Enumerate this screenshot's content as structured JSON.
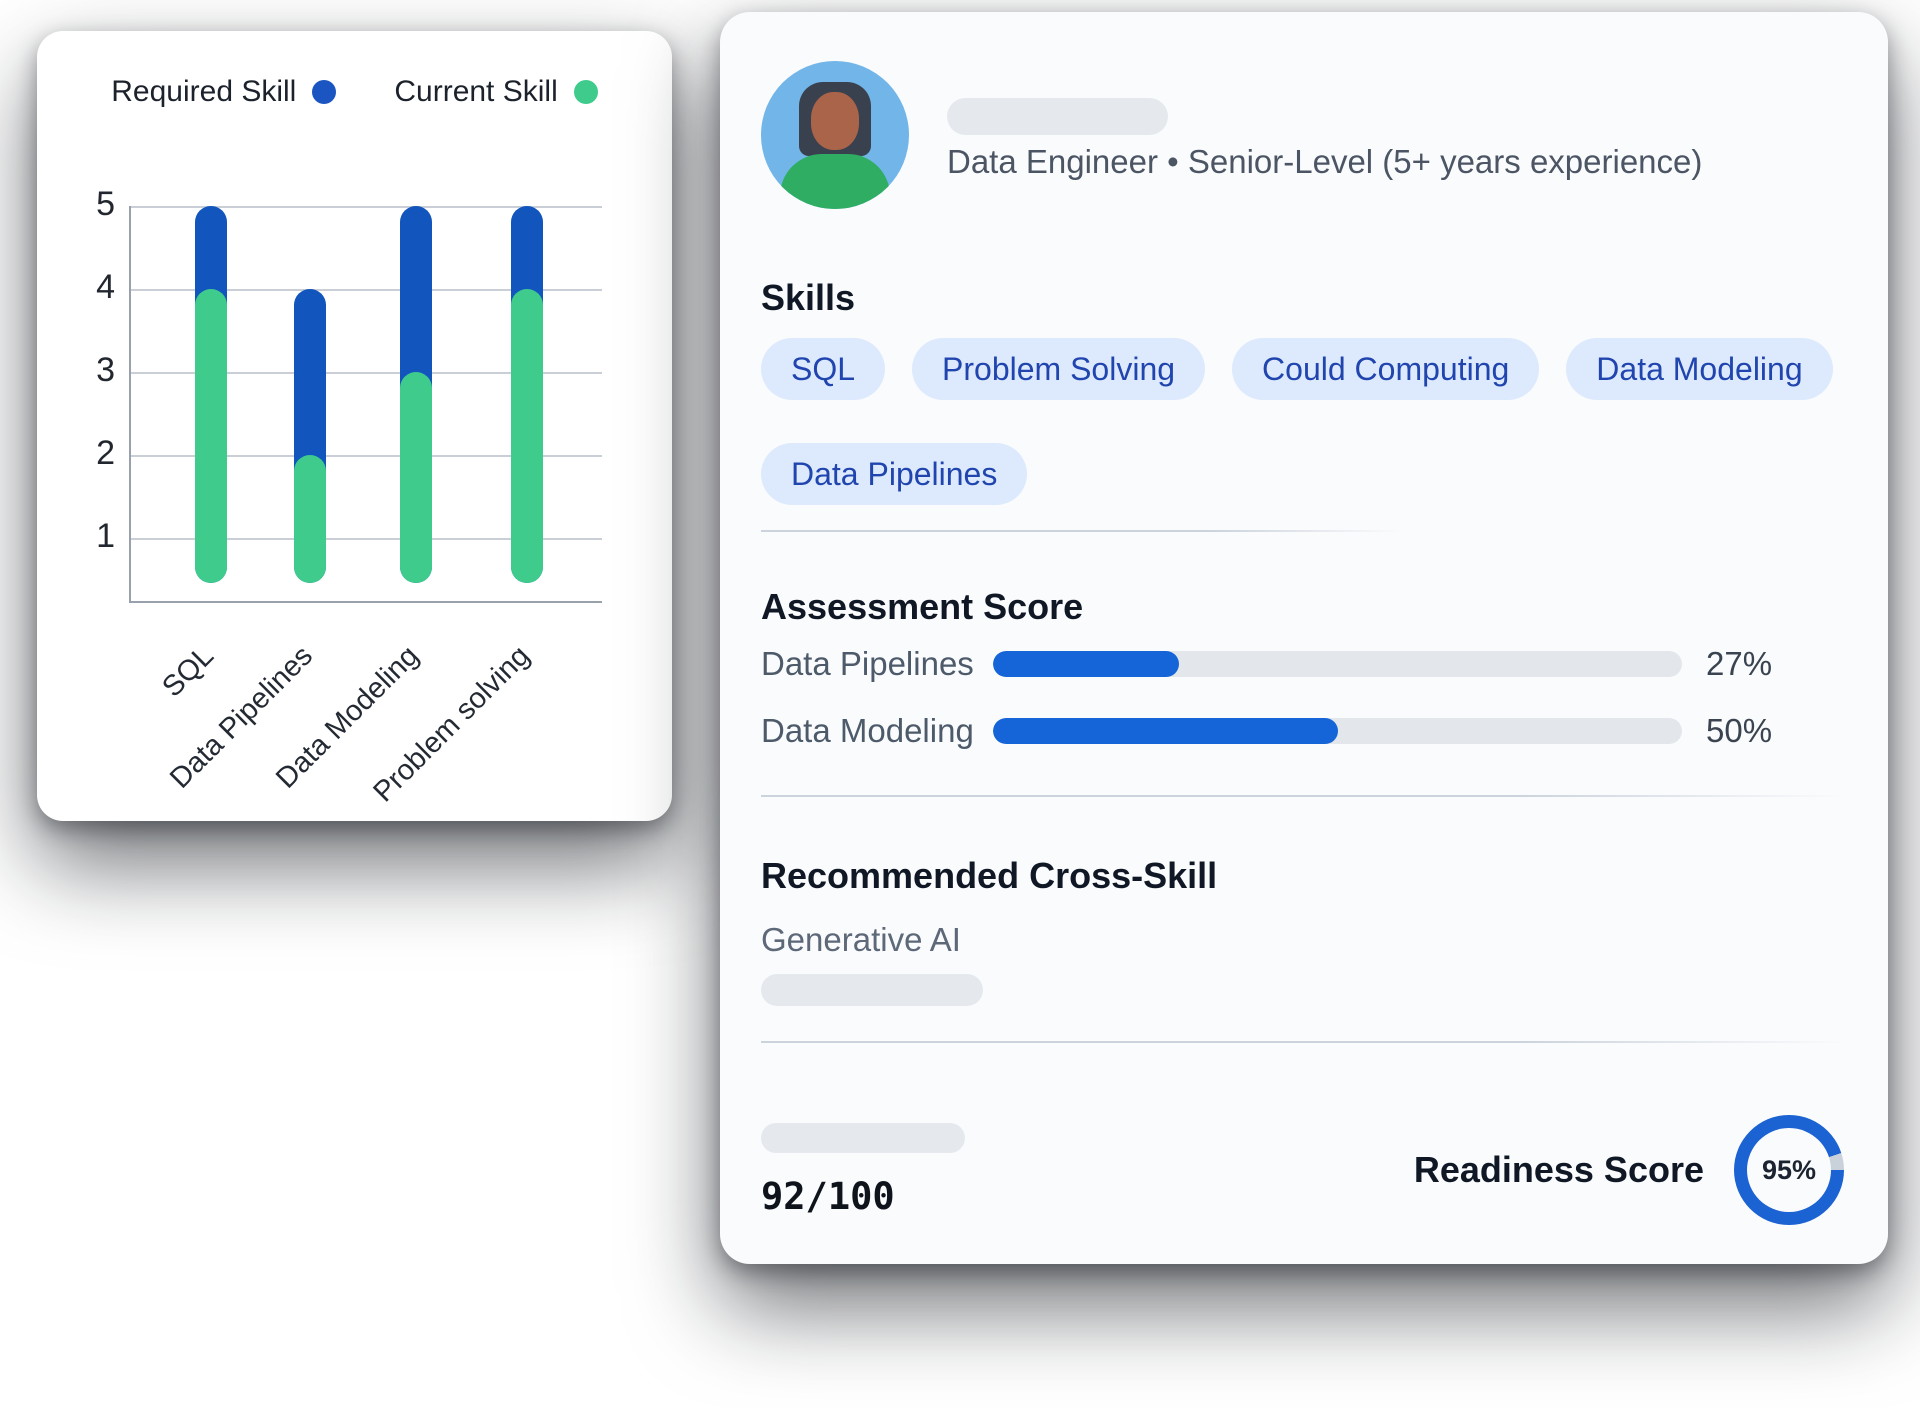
{
  "left_card": {
    "legend": [
      {
        "label": "Required Skill",
        "color": "#1a55c2"
      },
      {
        "label": "Current Skill",
        "color": "#3ecb8c"
      }
    ]
  },
  "chart_data": {
    "type": "bar",
    "title": "",
    "categories": [
      "SQL",
      "Data Pipelines",
      "Data Modeling",
      "Problem solving"
    ],
    "series": [
      {
        "name": "Required Skill",
        "color": "#1155bd",
        "values": [
          5,
          4,
          5,
          5
        ]
      },
      {
        "name": "Current Skill",
        "color": "#3ecb8c",
        "values": [
          4,
          2,
          3,
          4
        ]
      }
    ],
    "xlabel": "",
    "ylabel": "",
    "ylim": [
      0,
      5
    ],
    "yticks": [
      1,
      2,
      3,
      4,
      5
    ],
    "grid": true,
    "legend_position": "top"
  },
  "profile": {
    "headline": "Data Engineer • Senior-Level (5+ years experience)",
    "skills_heading": "Skills",
    "skill_chips": [
      "SQL",
      "Problem Solving",
      "Could Computing",
      "Data Modeling",
      "Data Pipelines"
    ],
    "assessment": {
      "heading": "Assessment Score",
      "rows": [
        {
          "label": "Data Pipelines",
          "percent": 27,
          "percent_label": "27%"
        },
        {
          "label": "Data Modeling",
          "percent": 50,
          "percent_label": "50%"
        }
      ]
    },
    "cross_skill": {
      "heading": "Recommended Cross-Skill",
      "item": "Generative AI"
    },
    "score_fraction": "92/100",
    "readiness": {
      "label": "Readiness Score",
      "percent": 95,
      "percent_label": "95%"
    }
  },
  "colors": {
    "required_blue": "#1155bd",
    "current_green": "#3ecb8c",
    "progress_blue": "#1565d8",
    "ring_blue": "#1b62d2",
    "ring_track": "#c9d1da",
    "chip_bg": "#ddeafd",
    "chip_text": "#2145af",
    "track_gray": "#e3e7ec"
  }
}
